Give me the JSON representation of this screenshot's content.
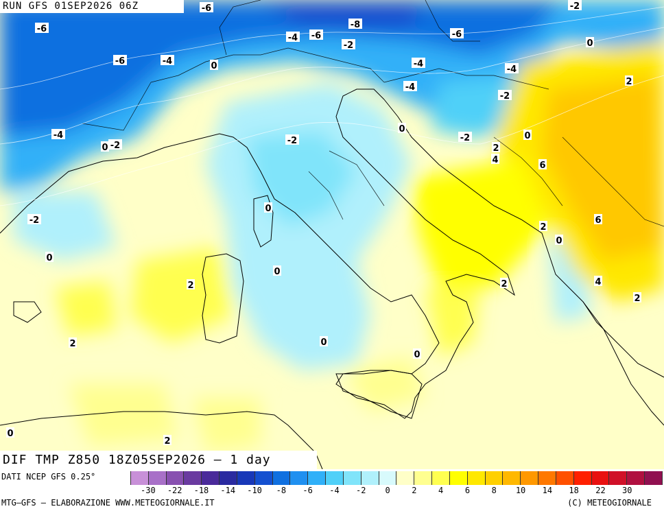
{
  "header": {
    "run_label": "RUN GFS 01SEP2026 06Z"
  },
  "field": {
    "title": "DIF TMP Z850 18Z05SEP2026 – 1 day"
  },
  "footer": {
    "data_source": "DATI NCEP GFS 0.25°",
    "credit_left": "MTG–GFS – ELABORAZIONE WWW.METEOGIORNALE.IT",
    "credit_right": "(C) METEOGIORNALE"
  },
  "legend": {
    "tick_labels": [
      "-30",
      "-22",
      "-18",
      "-14",
      "-10",
      "-8",
      "-6",
      "-4",
      "-2",
      "0",
      "2",
      "4",
      "6",
      "8",
      "10",
      "14",
      "18",
      "22",
      "30"
    ],
    "colors": [
      "#c890d8",
      "#a870c8",
      "#8850b0",
      "#6a3aa0",
      "#4a2a9a",
      "#2a2aa0",
      "#1838b8",
      "#1450d0",
      "#1070e0",
      "#2090f0",
      "#30b0f8",
      "#50d0f8",
      "#80e4fa",
      "#b0f0fc",
      "#d8fafc",
      "#ffffc8",
      "#ffff90",
      "#ffff50",
      "#ffff00",
      "#ffe800",
      "#ffd000",
      "#ffb800",
      "#ff9800",
      "#ff7800",
      "#ff5000",
      "#ff2000",
      "#e81010",
      "#d01028",
      "#b01040",
      "#901050"
    ]
  },
  "map": {
    "contour_labels": [
      {
        "text": "-6"
      },
      {
        "text": "-2"
      },
      {
        "text": "-6"
      },
      {
        "text": "-4"
      },
      {
        "text": "-6"
      },
      {
        "text": "-8"
      },
      {
        "text": "-2"
      },
      {
        "text": "-6"
      },
      {
        "text": "0"
      },
      {
        "text": "-6"
      },
      {
        "text": "-4"
      },
      {
        "text": "0"
      },
      {
        "text": "-4"
      },
      {
        "text": "-4"
      },
      {
        "text": "2"
      },
      {
        "text": "-4"
      },
      {
        "text": "-2"
      },
      {
        "text": "0"
      },
      {
        "text": "-2"
      },
      {
        "text": "0"
      },
      {
        "text": "-4"
      },
      {
        "text": "0"
      },
      {
        "text": "-2"
      },
      {
        "text": "-2"
      },
      {
        "text": "2"
      },
      {
        "text": "4"
      },
      {
        "text": "6"
      },
      {
        "text": "0"
      },
      {
        "text": "-2"
      },
      {
        "text": "6"
      },
      {
        "text": "2"
      },
      {
        "text": "0"
      },
      {
        "text": "0"
      },
      {
        "text": "0"
      },
      {
        "text": "2"
      },
      {
        "text": "2"
      },
      {
        "text": "4"
      },
      {
        "text": "2"
      },
      {
        "text": "2"
      },
      {
        "text": "0"
      },
      {
        "text": "0"
      },
      {
        "text": "0"
      },
      {
        "text": "2"
      }
    ]
  }
}
